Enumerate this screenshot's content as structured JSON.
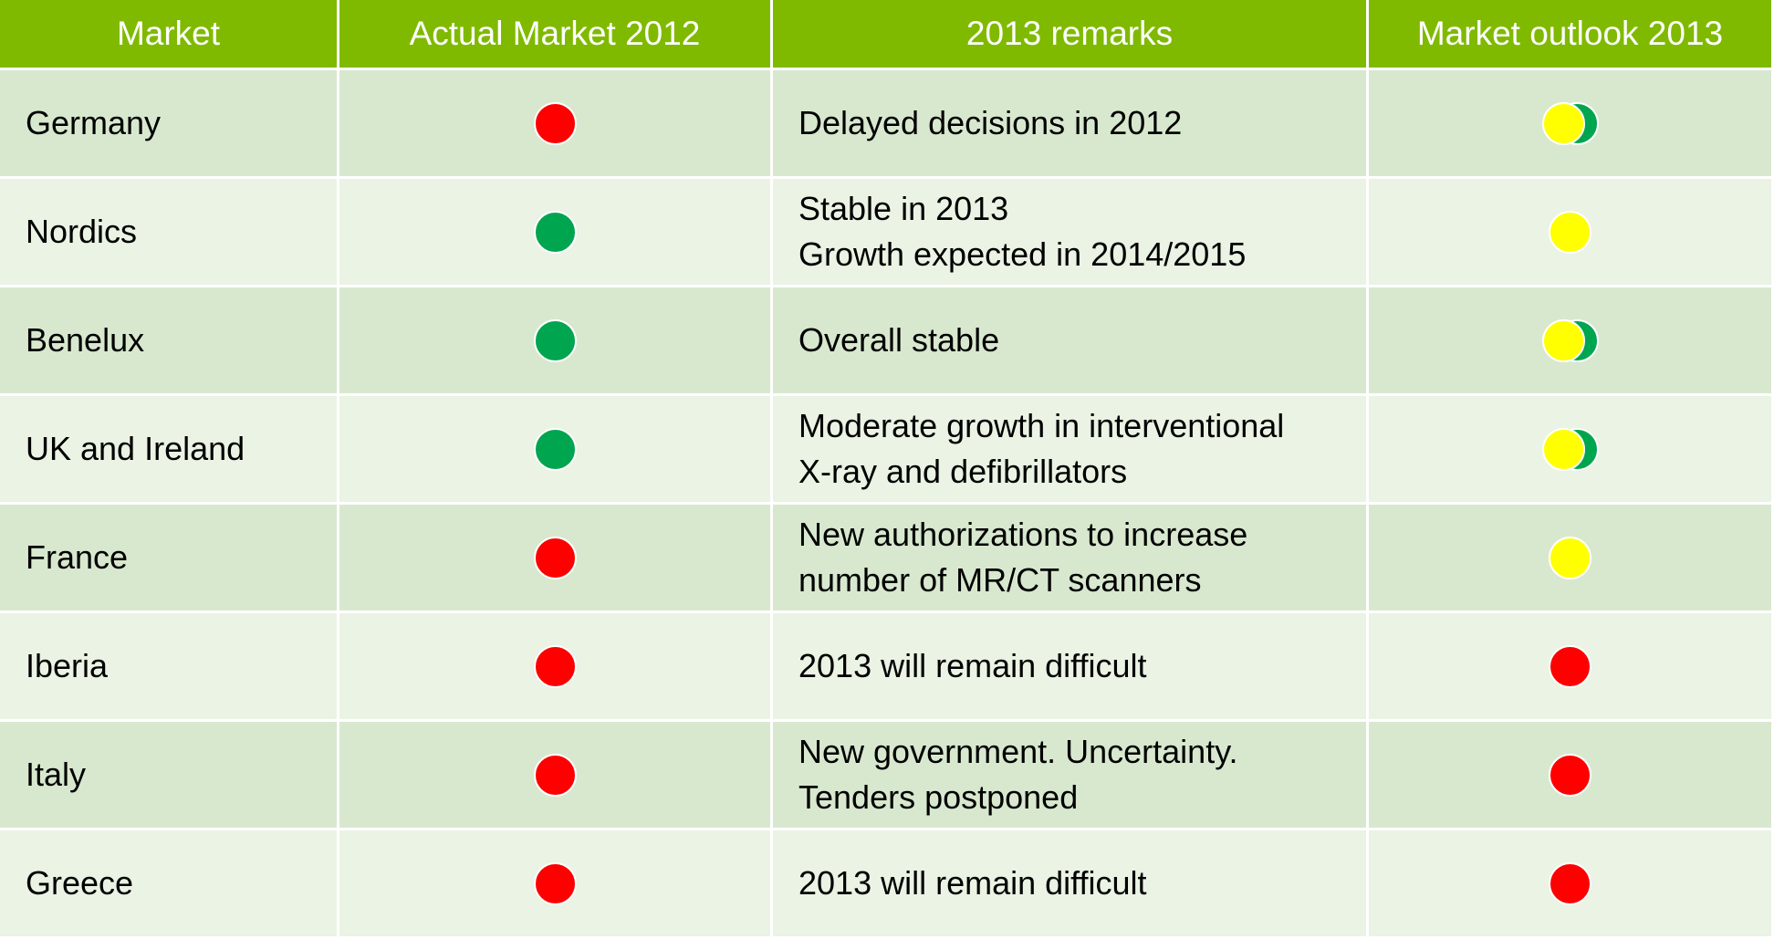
{
  "table": {
    "header": [
      "Market",
      "Actual Market 2012",
      "2013 remarks",
      "Market outlook 2013"
    ],
    "header_color": "#7fba00",
    "row_colors": [
      "#d8e8cf",
      "#eaf3e4"
    ],
    "rows": [
      {
        "market": "Germany",
        "actual": "#ff0000",
        "remarks": [
          "Delayed decisions in 2012"
        ],
        "outlook": [
          "#00a550",
          "#ffff00"
        ]
      },
      {
        "market": "Nordics",
        "actual": "#00a550",
        "remarks": [
          "Stable in 2013",
          "Growth expected in 2014/2015"
        ],
        "outlook": [
          "#ffff00"
        ]
      },
      {
        "market": "Benelux",
        "actual": "#00a550",
        "remarks": [
          "Overall stable"
        ],
        "outlook": [
          "#00a550",
          "#ffff00"
        ]
      },
      {
        "market": "UK and Ireland",
        "actual": "#00a550",
        "remarks": [
          "Moderate growth in interventional",
          "X-ray and defibrillators"
        ],
        "outlook": [
          "#00a550",
          "#ffff00"
        ]
      },
      {
        "market": "France",
        "actual": "#ff0000",
        "remarks": [
          "New authorizations to increase",
          "number of MR/CT scanners"
        ],
        "outlook": [
          "#ffff00"
        ]
      },
      {
        "market": "Iberia",
        "actual": "#ff0000",
        "remarks": [
          "2013 will remain difficult"
        ],
        "outlook": [
          "#ff0000"
        ]
      },
      {
        "market": "Italy",
        "actual": "#ff0000",
        "remarks": [
          "New government. Uncertainty.",
          "Tenders postponed"
        ],
        "outlook": [
          "#ff0000"
        ]
      },
      {
        "market": "Greece",
        "actual": "#ff0000",
        "remarks": [
          "2013 will remain difficult"
        ],
        "outlook": [
          "#ff0000"
        ]
      }
    ]
  }
}
